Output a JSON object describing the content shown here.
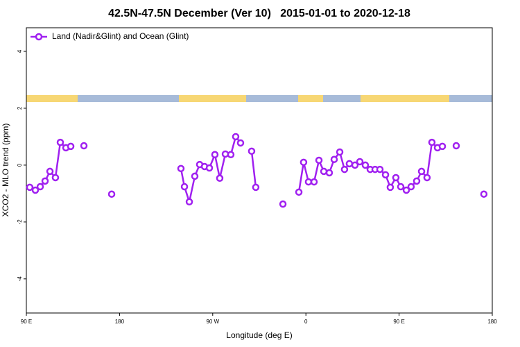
{
  "chart_data": {
    "type": "line",
    "title": "42.5N-47.5N December (Ver 10)   2015-01-01 to 2020-12-18",
    "x_label": "Longitude (deg E)",
    "y_label": "XCO2 - MLO trend (ppm)",
    "xlim": [
      90,
      540
    ],
    "ylim": [
      -5.2,
      4.83
    ],
    "xticks": [
      {
        "value": 90,
        "label": "90 E"
      },
      {
        "value": 180,
        "label": "180"
      },
      {
        "value": 270,
        "label": "90 W"
      },
      {
        "value": 360,
        "label": "0"
      },
      {
        "value": 450,
        "label": "90 E"
      },
      {
        "value": 540,
        "label": "180"
      }
    ],
    "yticks": [
      4,
      2,
      0,
      -2,
      -4
    ],
    "legend": "top-left",
    "x": [
      93.3,
      98.7,
      103.4,
      108.1,
      112.8,
      118.1,
      122.8,
      128.2,
      132.9,
      null,
      145.6,
      null,
      172.4,
      null,
      239.3,
      242.7,
      247.4,
      252.7,
      257.4,
      262.1,
      266.8,
      272.1,
      276.8,
      282.2,
      287.5,
      292.2,
      296.9,
      null,
      307.6,
      311.6,
      null,
      337.8,
      null,
      353.2,
      357.8,
      362.5,
      367.9,
      372.6,
      377.3,
      382.6,
      387.3,
      392.7,
      397.3,
      402.0,
      407.4,
      412.1,
      417.4,
      422.1,
      426.8,
      431.5,
      436.9,
      441.5,
      446.9,
      451.6,
      457.0,
      461.6,
      467.0,
      471.7,
      477.0,
      481.7,
      487.1,
      491.8,
      null,
      505.2,
      null,
      531.9
    ],
    "series": [
      {
        "name": "Land (Nadir&Glint) and Ocean (Glint)",
        "color": "#a020f0",
        "values": [
          -0.78,
          -0.88,
          -0.76,
          -0.56,
          -0.22,
          -0.44,
          0.8,
          0.61,
          0.66,
          null,
          0.68,
          null,
          -1.02,
          null,
          -0.12,
          -0.76,
          -1.29,
          -0.39,
          0.02,
          -0.05,
          -0.1,
          0.37,
          -0.46,
          0.39,
          0.37,
          1.0,
          0.78,
          null,
          0.49,
          -0.78,
          null,
          -1.37,
          null,
          -0.95,
          0.1,
          -0.59,
          -0.59,
          0.17,
          -0.22,
          -0.27,
          0.2,
          0.46,
          -0.15,
          0.05,
          0,
          0.12,
          0,
          -0.15,
          -0.15,
          -0.15,
          -0.34,
          -0.78,
          -0.44,
          -0.76,
          -0.88,
          -0.76,
          -0.56,
          -0.22,
          -0.44,
          0.8,
          0.61,
          0.66,
          null,
          0.68,
          null,
          -1.02
        ]
      }
    ]
  }
}
